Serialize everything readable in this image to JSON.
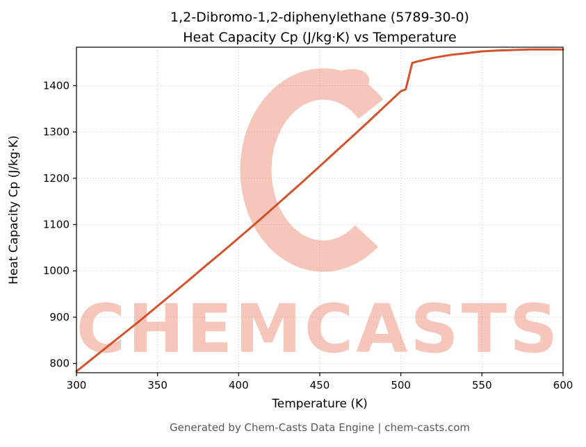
{
  "figure": {
    "title_line1": "1,2-Dibromo-1,2-diphenylethane (5789-30-0)",
    "title_line2": "Heat Capacity Cp (J/kg·K) vs Temperature",
    "footer": "Generated by Chem-Casts Data Engine | chem-casts.com",
    "watermark_text": "CHEMCASTS"
  },
  "chart_data": {
    "type": "line",
    "title": "1,2-Dibromo-1,2-diphenylethane (5789-30-0)\nHeat Capacity Cp (J/kg·K) vs Temperature",
    "xlabel": "Temperature (K)",
    "ylabel": "Heat Capacity Cp (J/kg·K)",
    "xlim": [
      300,
      600
    ],
    "ylim": [
      780,
      1483
    ],
    "x_ticks": [
      300,
      350,
      400,
      450,
      500,
      550,
      600
    ],
    "y_ticks": [
      800,
      900,
      1000,
      1100,
      1200,
      1300,
      1400
    ],
    "grid": true,
    "grid_style": "dotted",
    "legend": "none",
    "line_color": "#d4522b",
    "watermark_color": "#e8674a",
    "series": [
      {
        "name": "Heat Capacity Cp",
        "points": [
          [
            300,
            783
          ],
          [
            310,
            811
          ],
          [
            320,
            839
          ],
          [
            330,
            867
          ],
          [
            340,
            895
          ],
          [
            350,
            924
          ],
          [
            360,
            953
          ],
          [
            370,
            982
          ],
          [
            380,
            1012
          ],
          [
            390,
            1041
          ],
          [
            400,
            1071
          ],
          [
            410,
            1101
          ],
          [
            420,
            1132
          ],
          [
            430,
            1163
          ],
          [
            440,
            1194
          ],
          [
            450,
            1226
          ],
          [
            460,
            1258
          ],
          [
            470,
            1290
          ],
          [
            480,
            1322
          ],
          [
            490,
            1355
          ],
          [
            500,
            1388
          ],
          [
            503,
            1392
          ],
          [
            507,
            1449
          ],
          [
            510,
            1452
          ],
          [
            520,
            1460
          ],
          [
            530,
            1466
          ],
          [
            540,
            1470
          ],
          [
            550,
            1474
          ],
          [
            560,
            1476
          ],
          [
            570,
            1477
          ],
          [
            580,
            1478
          ],
          [
            590,
            1478
          ],
          [
            600,
            1478
          ]
        ]
      }
    ]
  }
}
